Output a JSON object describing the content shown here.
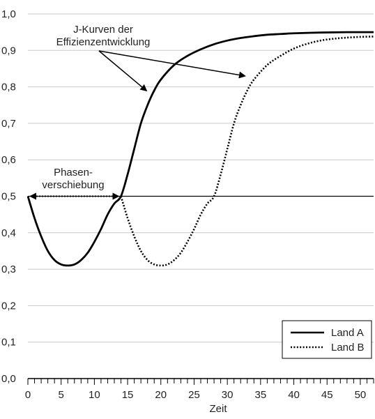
{
  "chart_data": {
    "type": "line",
    "xlabel": "Zeit",
    "ylabel": "",
    "xlim": [
      0,
      52
    ],
    "ylim": [
      0,
      1.0
    ],
    "x_ticks": [
      "0",
      "5",
      "10",
      "15",
      "20",
      "25",
      "30",
      "35",
      "40",
      "45",
      "50"
    ],
    "y_ticks": [
      "0,0",
      "0,1",
      "0,2",
      "0,3",
      "0,4",
      "0,5",
      "0,6",
      "0,7",
      "0,8",
      "0,9",
      "1,0"
    ],
    "grid": "horizontal",
    "legend_position": "bottom-right",
    "reference_line": {
      "y": 0.5
    },
    "series": [
      {
        "name": "Land A",
        "style": "solid",
        "points": [
          [
            0,
            0.5
          ],
          [
            1,
            0.44
          ],
          [
            2,
            0.39
          ],
          [
            3,
            0.35
          ],
          [
            4,
            0.325
          ],
          [
            5,
            0.313
          ],
          [
            6,
            0.31
          ],
          [
            7,
            0.313
          ],
          [
            8,
            0.325
          ],
          [
            9,
            0.345
          ],
          [
            10,
            0.375
          ],
          [
            11,
            0.41
          ],
          [
            12,
            0.45
          ],
          [
            13,
            0.48
          ],
          [
            14,
            0.5
          ],
          [
            15,
            0.56
          ],
          [
            16,
            0.63
          ],
          [
            17,
            0.7
          ],
          [
            18,
            0.75
          ],
          [
            19,
            0.79
          ],
          [
            20,
            0.82
          ],
          [
            22,
            0.86
          ],
          [
            24,
            0.885
          ],
          [
            26,
            0.903
          ],
          [
            28,
            0.917
          ],
          [
            30,
            0.927
          ],
          [
            32,
            0.934
          ],
          [
            34,
            0.939
          ],
          [
            36,
            0.943
          ],
          [
            38,
            0.945
          ],
          [
            40,
            0.947
          ],
          [
            44,
            0.949
          ],
          [
            48,
            0.95
          ],
          [
            52,
            0.95
          ]
        ]
      },
      {
        "name": "Land B",
        "style": "dotted",
        "points": [
          [
            14,
            0.5
          ],
          [
            15,
            0.44
          ],
          [
            16,
            0.39
          ],
          [
            17,
            0.35
          ],
          [
            18,
            0.325
          ],
          [
            19,
            0.313
          ],
          [
            20,
            0.31
          ],
          [
            21,
            0.313
          ],
          [
            22,
            0.325
          ],
          [
            23,
            0.345
          ],
          [
            24,
            0.375
          ],
          [
            25,
            0.41
          ],
          [
            26,
            0.45
          ],
          [
            27,
            0.48
          ],
          [
            28,
            0.5
          ],
          [
            29,
            0.56
          ],
          [
            30,
            0.63
          ],
          [
            31,
            0.7
          ],
          [
            32,
            0.75
          ],
          [
            33,
            0.79
          ],
          [
            34,
            0.82
          ],
          [
            36,
            0.86
          ],
          [
            38,
            0.885
          ],
          [
            40,
            0.905
          ],
          [
            42,
            0.918
          ],
          [
            44,
            0.927
          ],
          [
            46,
            0.932
          ],
          [
            48,
            0.935
          ],
          [
            50,
            0.937
          ],
          [
            52,
            0.938
          ]
        ]
      }
    ],
    "annotations": [
      {
        "name": "j-curves",
        "text_lines": [
          "J-Kurven der",
          "Effizienzentwicklung"
        ],
        "arrows_to": [
          [
            17.8,
            0.79
          ],
          [
            32.6,
            0.83
          ]
        ]
      },
      {
        "name": "phase-shift",
        "text_lines": [
          "Phasen-",
          "verschiebung"
        ],
        "span": [
          0,
          14
        ],
        "y": 0.5
      }
    ]
  }
}
